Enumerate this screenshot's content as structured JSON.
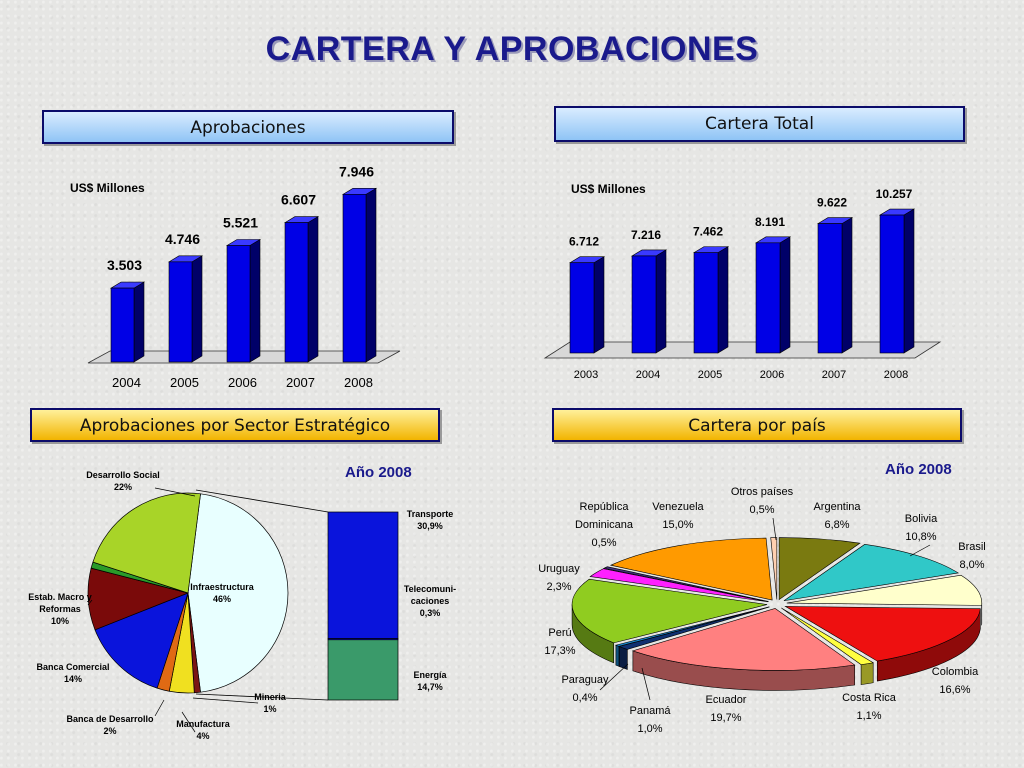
{
  "page_title": "CARTERA Y APROBACIONES",
  "headers": {
    "aprobaciones": "Aprobaciones",
    "cartera_total": "Cartera Total",
    "sector": "Aprobaciones por Sector Estratégico",
    "pais": "Cartera por país"
  },
  "colors": {
    "bar": "#0000e6",
    "title": "#1a1a8c"
  },
  "chart_data": [
    {
      "id": "aprobaciones",
      "type": "bar",
      "unit_label": "US$ Millones",
      "categories": [
        "2004",
        "2005",
        "2006",
        "2007",
        "2008"
      ],
      "values": [
        3503,
        4746,
        5521,
        6607,
        7946
      ],
      "value_labels": [
        "3.503",
        "4.746",
        "5.521",
        "6.607",
        "7.946"
      ]
    },
    {
      "id": "cartera_total",
      "type": "bar",
      "unit_label": "US$ Millones",
      "categories": [
        "2003",
        "2004",
        "2005",
        "2006",
        "2007",
        "2008"
      ],
      "values": [
        6712,
        7216,
        7462,
        8191,
        9622,
        10257
      ],
      "value_labels": [
        "6.712",
        "7.216",
        "7.462",
        "8.191",
        "9.622",
        "10.257"
      ]
    },
    {
      "id": "sector",
      "type": "pie",
      "year_label": "Año 2008",
      "slices": [
        {
          "name": "Infraestructura",
          "value": 46,
          "label": "46%",
          "color": "#e8ffff"
        },
        {
          "name": "Mineria",
          "value": 1,
          "label": "1%",
          "color": "#7a1414"
        },
        {
          "name": "Manufactura",
          "value": 4,
          "label": "4%",
          "color": "#f0e020"
        },
        {
          "name": "Banca de Desarrollo",
          "value": 2,
          "label": "2%",
          "color": "#e06a14"
        },
        {
          "name": "Banca Comercial",
          "value": 14,
          "label": "14%",
          "color": "#0a14dc"
        },
        {
          "name": "Estab. Macro y Reformas",
          "value": 10,
          "label": "10%",
          "color": "#7a0a0a"
        },
        {
          "name": "",
          "value": 1,
          "label": "",
          "color": "#2a9a2a"
        },
        {
          "name": "Desarrollo Social",
          "value": 22,
          "label": "22%",
          "color": "#a8d428"
        }
      ],
      "breakdown": [
        {
          "name": "Transporte",
          "label": "30,9%",
          "value": 30.9,
          "color": "#0a14dc"
        },
        {
          "name": "Telecomuni-caciones",
          "label": "0,3%",
          "value": 0.3,
          "color": "#0a14dc"
        },
        {
          "name": "Energía",
          "label": "14,7%",
          "value": 14.7,
          "color": "#3a9a6a"
        }
      ]
    },
    {
      "id": "pais",
      "type": "pie",
      "year_label": "Año 2008",
      "slices": [
        {
          "name": "Argentina",
          "value": 6.8,
          "label": "6,8%",
          "color": "#7a7a10"
        },
        {
          "name": "Bolivia",
          "value": 10.8,
          "label": "10,8%",
          "color": "#30c8c8"
        },
        {
          "name": "Brasil",
          "value": 8.0,
          "label": "8,0%",
          "color": "#ffffcc"
        },
        {
          "name": "Colombia",
          "value": 16.6,
          "label": "16,6%",
          "color": "#ee1010"
        },
        {
          "name": "Costa Rica",
          "value": 1.1,
          "label": "1,1%",
          "color": "#ffff40"
        },
        {
          "name": "Ecuador",
          "value": 19.7,
          "label": "19,7%",
          "color": "#ff8080"
        },
        {
          "name": "Panamá",
          "value": 1.0,
          "label": "1,0%",
          "color": "#103070"
        },
        {
          "name": "Paraguay",
          "value": 0.4,
          "label": "0,4%",
          "color": "#1a8ad0"
        },
        {
          "name": "Perú",
          "value": 17.3,
          "label": "17,3%",
          "color": "#90cc20"
        },
        {
          "name": "Uruguay",
          "value": 2.3,
          "label": "2,3%",
          "color": "#ff20ff"
        },
        {
          "name": "República Dominicana",
          "value": 0.5,
          "label": "0,5%",
          "color": "#40307a"
        },
        {
          "name": "Venezuela",
          "value": 15.0,
          "label": "15,0%",
          "color": "#ff9a00"
        },
        {
          "name": "Otros países",
          "value": 0.5,
          "label": "0,5%",
          "color": "#ffd0b0"
        }
      ]
    }
  ]
}
